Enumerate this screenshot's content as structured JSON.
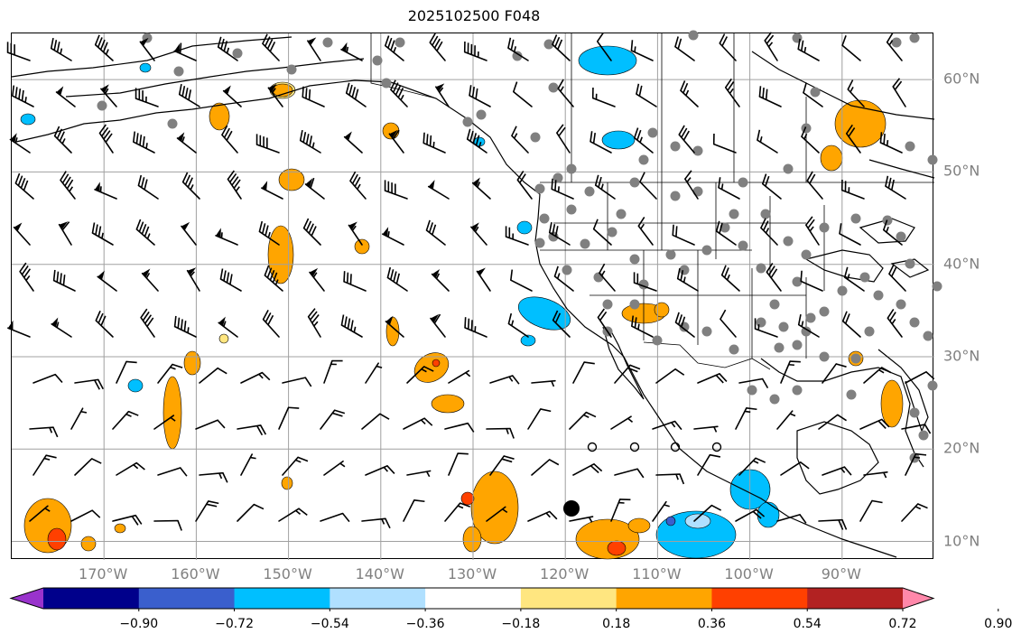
{
  "title": "2025102500 F048",
  "map": {
    "projection": "plate-carree",
    "lon_range": [
      -180,
      -80
    ],
    "lat_range": [
      8,
      65
    ],
    "lat_labels": [
      "10°N",
      "20°N",
      "30°N",
      "40°N",
      "50°N",
      "60°N"
    ],
    "lon_labels": [
      "170°W",
      "160°W",
      "150°W",
      "140°W",
      "130°W",
      "120°W",
      "110°W",
      "100°W",
      "90°W"
    ],
    "gridline_color": "#a0a0a0",
    "coastline_color": "#000000",
    "station_marker_color": "#808080",
    "wind_barb_color": "#000000"
  },
  "colorbar": {
    "tick_labels": [
      "−0.90",
      "−0.72",
      "−0.54",
      "−0.36",
      "−0.18",
      "0.18",
      "0.36",
      "0.54",
      "0.72",
      "0.90"
    ],
    "colors": [
      "#9933cc",
      "#00008b",
      "#3a5fcd",
      "#00bfff",
      "#b0e0ff",
      "#ffffff",
      "#ffe680",
      "#ffa500",
      "#ff4000",
      "#b22222",
      "#ff88aa"
    ],
    "extend": "both"
  }
}
